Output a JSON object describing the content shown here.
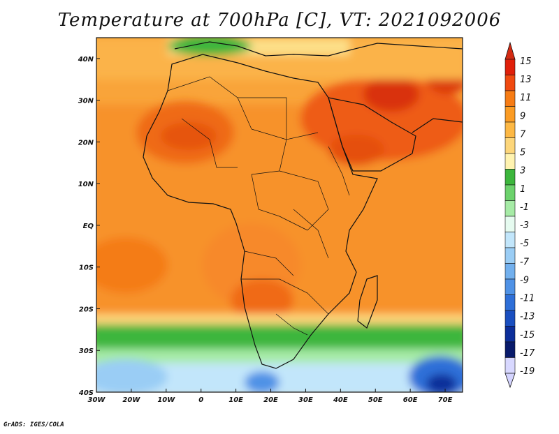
{
  "title": "Temperature at 700hPa [C], VT: 2021092006",
  "credit": "GrADS: IGES/COLA",
  "map": {
    "lon_range": [
      -30,
      75
    ],
    "lat_range": [
      -40,
      45
    ],
    "lon_ticks": [
      {
        "value": -30,
        "label": "30W"
      },
      {
        "value": -20,
        "label": "20W"
      },
      {
        "value": -10,
        "label": "10W"
      },
      {
        "value": 0,
        "label": "0"
      },
      {
        "value": 10,
        "label": "10E"
      },
      {
        "value": 20,
        "label": "20E"
      },
      {
        "value": 30,
        "label": "30E"
      },
      {
        "value": 40,
        "label": "40E"
      },
      {
        "value": 50,
        "label": "50E"
      },
      {
        "value": 60,
        "label": "60E"
      },
      {
        "value": 70,
        "label": "70E"
      }
    ],
    "lat_ticks": [
      {
        "value": 40,
        "label": "40N"
      },
      {
        "value": 30,
        "label": "30N"
      },
      {
        "value": 20,
        "label": "20N"
      },
      {
        "value": 10,
        "label": "10N"
      },
      {
        "value": 0,
        "label": "EQ"
      },
      {
        "value": -10,
        "label": "10S"
      },
      {
        "value": -20,
        "label": "20S"
      },
      {
        "value": -30,
        "label": "30S"
      },
      {
        "value": -40,
        "label": "40S"
      }
    ]
  },
  "colorbar": {
    "labels": [
      "15",
      "13",
      "11",
      "9",
      "7",
      "5",
      "3",
      "1",
      "-1",
      "-3",
      "-5",
      "-7",
      "-9",
      "-11",
      "-13",
      "-15",
      "-17",
      "-19"
    ],
    "colors": [
      "#e0200a",
      "#f04a10",
      "#f77c14",
      "#fb9c24",
      "#fdb844",
      "#fdd67a",
      "#fff3b0",
      "#3cb63c",
      "#6cd26c",
      "#a6eba6",
      "#e6fbf0",
      "#c2e6fb",
      "#9acdf5",
      "#72b0ee",
      "#4f92e6",
      "#2e6fd8",
      "#1a4fc0",
      "#0c2e9a",
      "#081a6b",
      "#d8d8ff"
    ],
    "top_color": "#d42a12",
    "bottom_color": "#d4d4ff"
  }
}
